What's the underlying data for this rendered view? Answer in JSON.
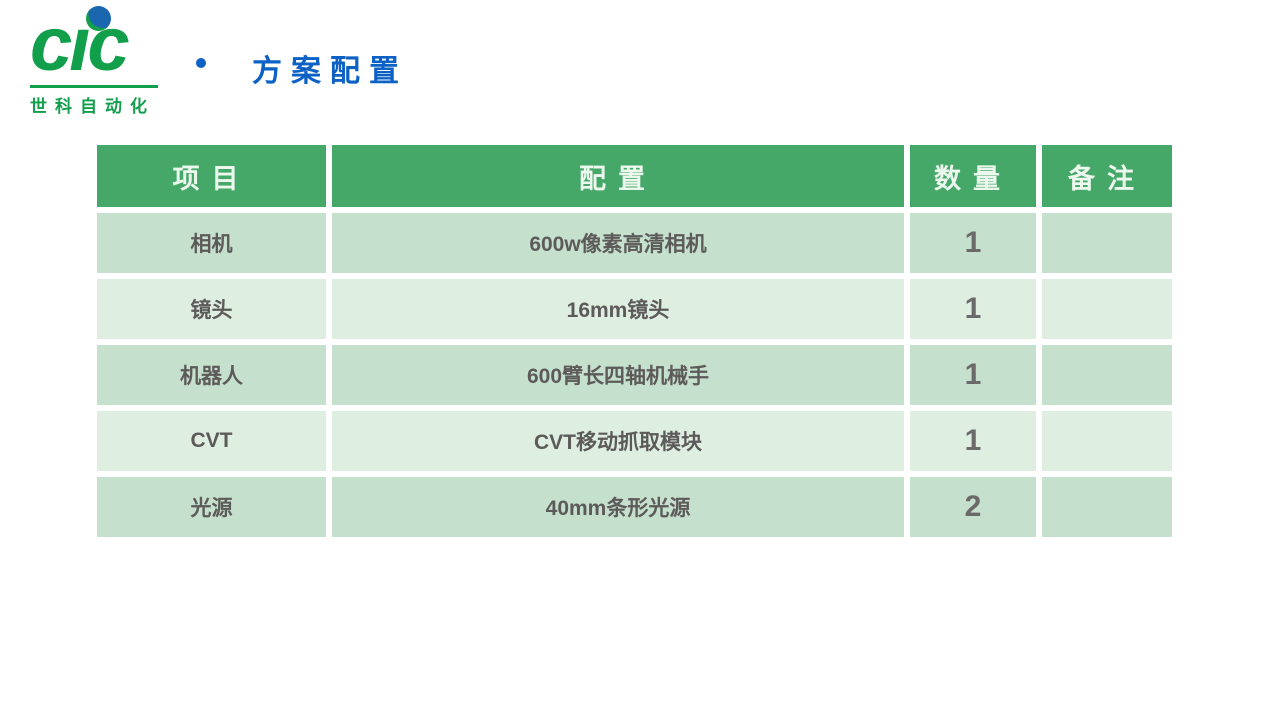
{
  "logo": {
    "word": "cic",
    "word_display_left": "c",
    "word_display_mid": "ı",
    "word_display_right": "c",
    "subtitle": "世科自动化",
    "dot_icon": "globe-dot-icon"
  },
  "header": {
    "bullet_icon": "bullet-dot-icon",
    "title": "方案配置"
  },
  "table": {
    "columns": [
      "项目",
      "配置",
      "数量",
      "备注"
    ],
    "rows": [
      {
        "item": "相机",
        "config": "600w像素高清相机",
        "qty": "1",
        "note": ""
      },
      {
        "item": "镜头",
        "config": "16mm镜头",
        "qty": "1",
        "note": ""
      },
      {
        "item": "机器人",
        "config": "600臂长四轴机械手",
        "qty": "1",
        "note": ""
      },
      {
        "item": "CVT",
        "config": "CVT移动抓取模块",
        "qty": "1",
        "note": ""
      },
      {
        "item": "光源",
        "config": "40mm条形光源",
        "qty": "2",
        "note": ""
      }
    ]
  },
  "colors": {
    "logo_green": "#119f4b",
    "logo_dot_blue": "#1a67b0",
    "title_blue": "#0c61c5",
    "table_header_bg": "#45a869",
    "table_header_text": "#ecf7ee",
    "row_dark": "#c5e0cc",
    "row_light": "#deeee1",
    "body_text_gray": "#5d5a5a",
    "page_bg": "#ffffff"
  }
}
